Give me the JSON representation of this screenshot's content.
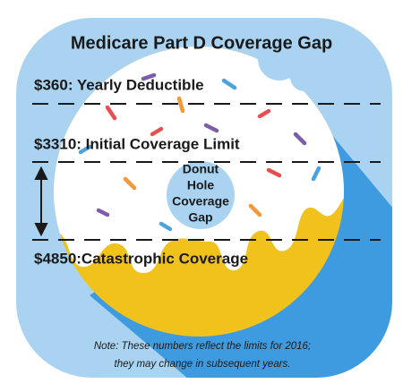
{
  "title": "Medicare Part D Coverage Gap",
  "levels": [
    "$360: Yearly Deductible",
    "$3310: Initial Coverage Limit",
    "$4850:Catastrophic Coverage"
  ],
  "hole": {
    "lines": [
      "Donut",
      "Hole",
      "Coverage",
      "Gap"
    ]
  },
  "note": {
    "lines": [
      "Note: These numbers reflect the limits for 2016;",
      "they may change in subsequent years."
    ]
  }
}
